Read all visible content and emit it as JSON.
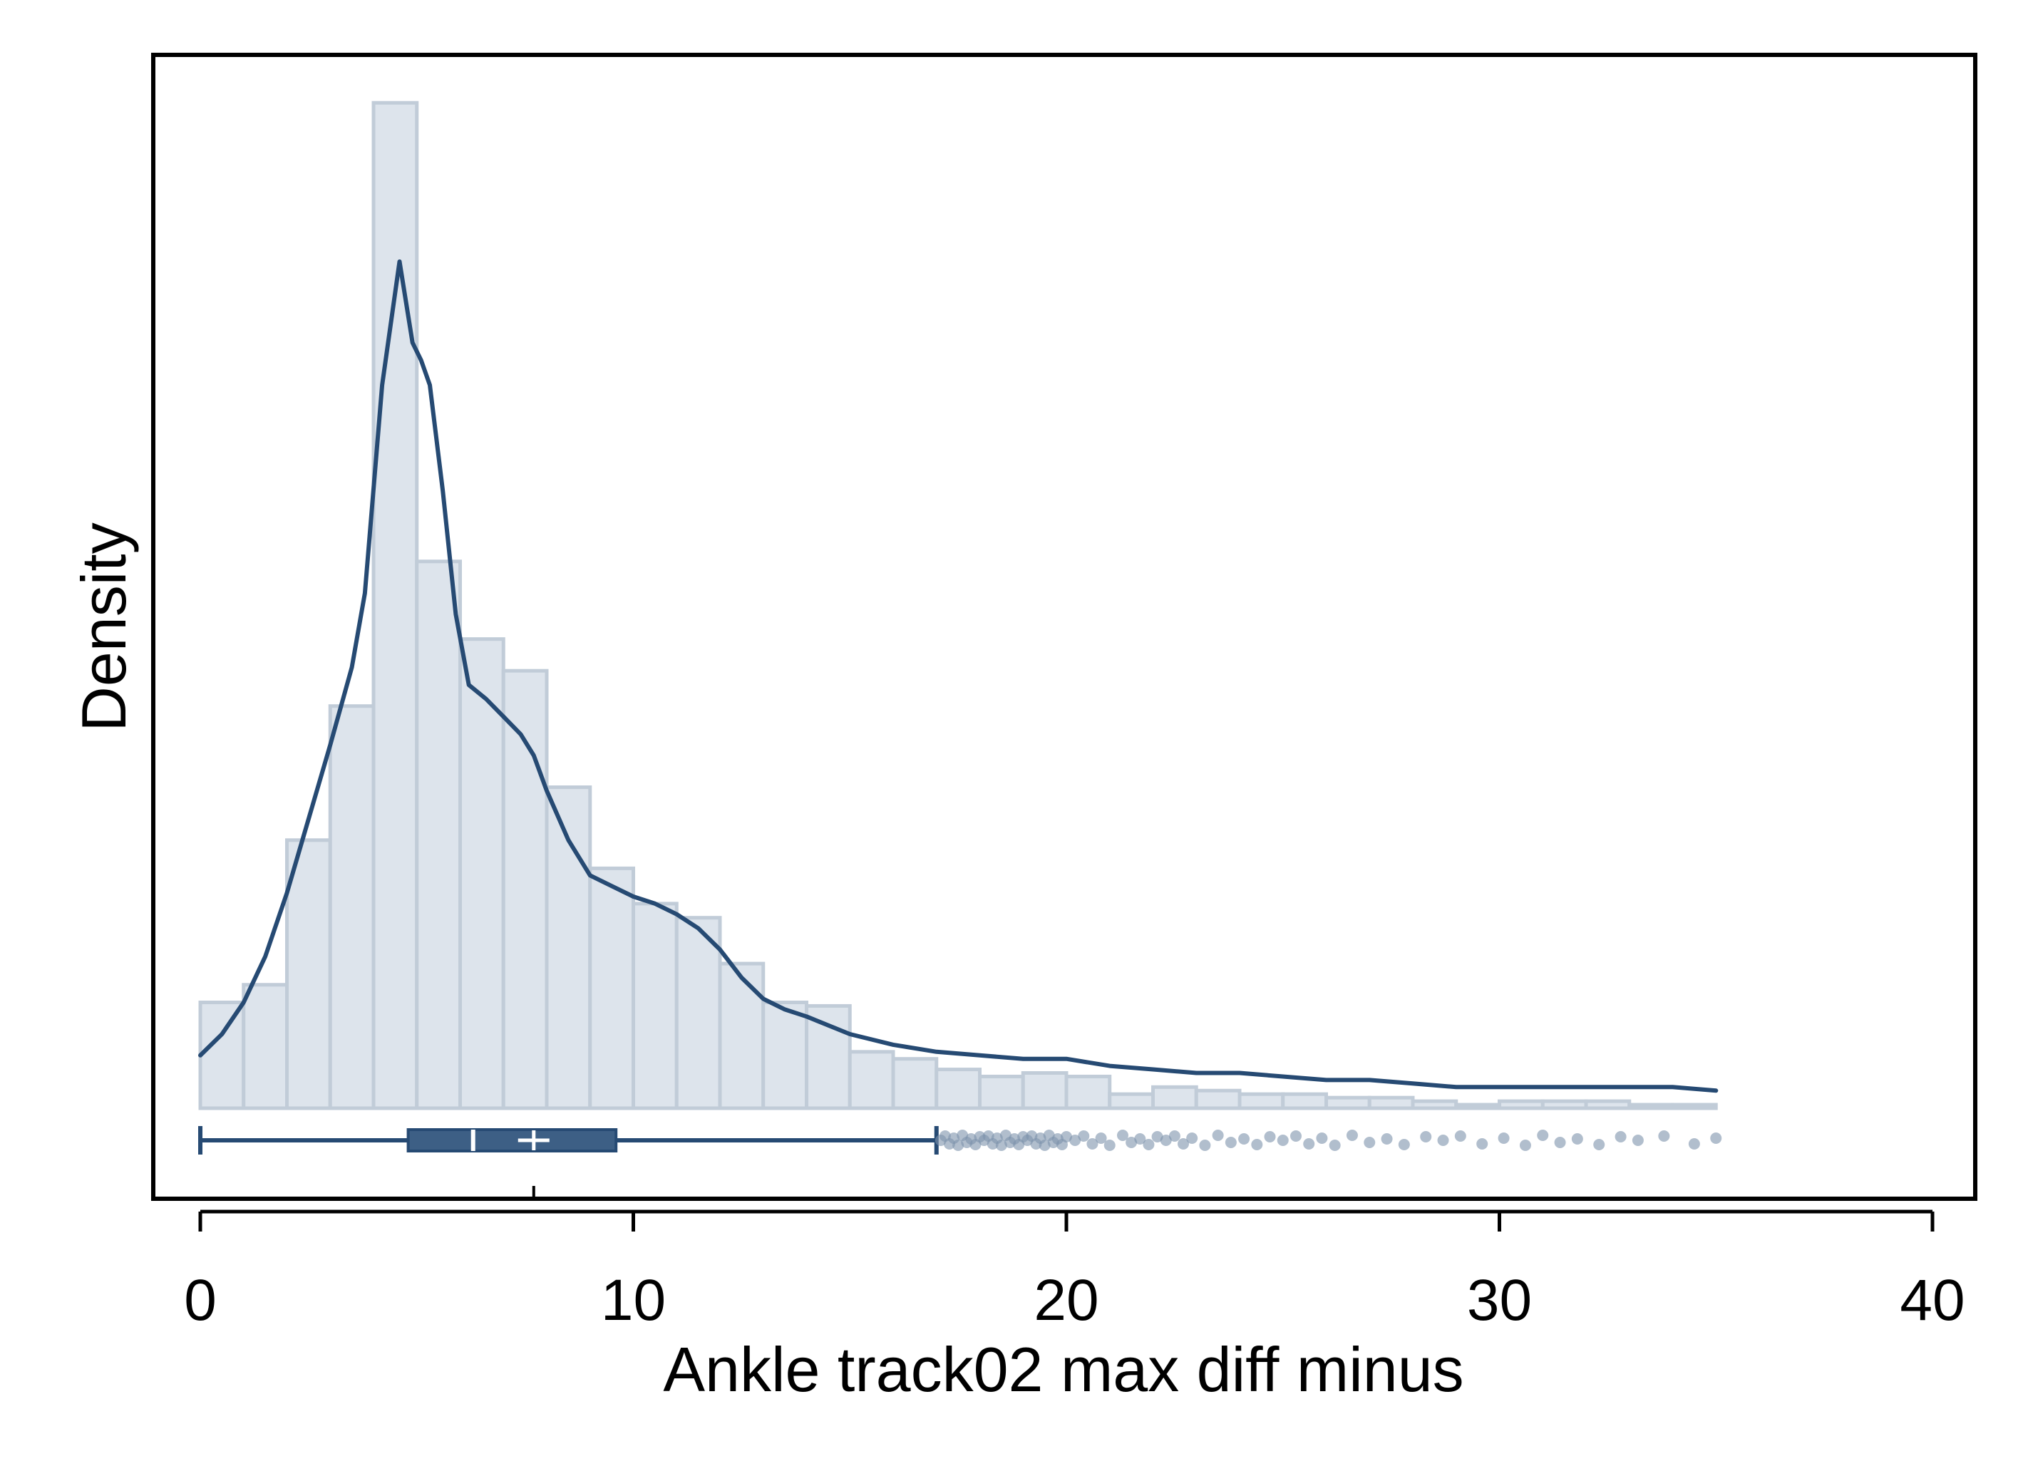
{
  "chart_data": {
    "type": "histogram",
    "xlabel": "Ankle track02 max diff minus",
    "ylabel": "Density",
    "xlim": [
      -1.1,
      41.2
    ],
    "x_ticks": [
      0,
      10,
      20,
      30,
      40
    ],
    "x_tick_labels": [
      "0",
      "10",
      "20",
      "30",
      "40"
    ],
    "histogram": {
      "bins": [
        {
          "x0": 0.0,
          "x1": 1.0,
          "density": 0.03
        },
        {
          "x0": 1.0,
          "x1": 2.0,
          "density": 0.035
        },
        {
          "x0": 2.0,
          "x1": 3.0,
          "density": 0.076
        },
        {
          "x0": 3.0,
          "x1": 4.0,
          "density": 0.114
        },
        {
          "x0": 4.0,
          "x1": 5.0,
          "density": 0.285
        },
        {
          "x0": 5.0,
          "x1": 6.0,
          "density": 0.155
        },
        {
          "x0": 6.0,
          "x1": 7.0,
          "density": 0.133
        },
        {
          "x0": 7.0,
          "x1": 8.0,
          "density": 0.124
        },
        {
          "x0": 8.0,
          "x1": 9.0,
          "density": 0.091
        },
        {
          "x0": 9.0,
          "x1": 10.0,
          "density": 0.068
        },
        {
          "x0": 10.0,
          "x1": 11.0,
          "density": 0.058
        },
        {
          "x0": 11.0,
          "x1": 12.0,
          "density": 0.054
        },
        {
          "x0": 12.0,
          "x1": 13.0,
          "density": 0.041
        },
        {
          "x0": 13.0,
          "x1": 14.0,
          "density": 0.03
        },
        {
          "x0": 14.0,
          "x1": 15.0,
          "density": 0.029
        },
        {
          "x0": 15.0,
          "x1": 16.0,
          "density": 0.016
        },
        {
          "x0": 16.0,
          "x1": 17.0,
          "density": 0.014
        },
        {
          "x0": 17.0,
          "x1": 18.0,
          "density": 0.011
        },
        {
          "x0": 18.0,
          "x1": 19.0,
          "density": 0.009
        },
        {
          "x0": 19.0,
          "x1": 20.0,
          "density": 0.01
        },
        {
          "x0": 20.0,
          "x1": 21.0,
          "density": 0.009
        },
        {
          "x0": 21.0,
          "x1": 22.0,
          "density": 0.004
        },
        {
          "x0": 22.0,
          "x1": 23.0,
          "density": 0.006
        },
        {
          "x0": 23.0,
          "x1": 24.0,
          "density": 0.005
        },
        {
          "x0": 24.0,
          "x1": 25.0,
          "density": 0.004
        },
        {
          "x0": 25.0,
          "x1": 26.0,
          "density": 0.004
        },
        {
          "x0": 26.0,
          "x1": 27.0,
          "density": 0.003
        },
        {
          "x0": 27.0,
          "x1": 28.0,
          "density": 0.003
        },
        {
          "x0": 28.0,
          "x1": 29.0,
          "density": 0.002
        },
        {
          "x0": 29.0,
          "x1": 30.0,
          "density": 0.001
        },
        {
          "x0": 30.0,
          "x1": 31.0,
          "density": 0.002
        },
        {
          "x0": 31.0,
          "x1": 32.0,
          "density": 0.002
        },
        {
          "x0": 32.0,
          "x1": 33.0,
          "density": 0.002
        },
        {
          "x0": 33.0,
          "x1": 34.0,
          "density": 0.001
        },
        {
          "x0": 34.0,
          "x1": 35.0,
          "density": 0.001
        }
      ]
    },
    "kde": {
      "x": [
        0.0,
        0.5,
        1.0,
        1.5,
        2.0,
        2.5,
        3.0,
        3.5,
        3.8,
        4.2,
        4.6,
        4.9,
        5.1,
        5.3,
        5.6,
        5.9,
        6.2,
        6.6,
        7.0,
        7.4,
        7.7,
        8.0,
        8.5,
        9.0,
        9.5,
        10.0,
        10.5,
        11.0,
        11.5,
        12.0,
        12.5,
        13.0,
        13.5,
        14.0,
        15.0,
        16.0,
        17.0,
        18.0,
        19.0,
        20.0,
        21.0,
        22.0,
        23.0,
        24.0,
        25.0,
        26.0,
        27.0,
        28.0,
        29.0,
        30.0,
        31.0,
        32.0,
        33.0,
        34.0,
        35.0
      ],
      "density": [
        0.015,
        0.021,
        0.03,
        0.043,
        0.061,
        0.082,
        0.103,
        0.125,
        0.146,
        0.205,
        0.24,
        0.217,
        0.212,
        0.205,
        0.175,
        0.14,
        0.12,
        0.116,
        0.111,
        0.106,
        0.1,
        0.09,
        0.076,
        0.066,
        0.063,
        0.06,
        0.058,
        0.055,
        0.051,
        0.045,
        0.037,
        0.031,
        0.028,
        0.026,
        0.021,
        0.018,
        0.016,
        0.015,
        0.014,
        0.014,
        0.012,
        0.011,
        0.01,
        0.01,
        0.009,
        0.008,
        0.008,
        0.007,
        0.006,
        0.006,
        0.006,
        0.006,
        0.006,
        0.006,
        0.005
      ],
      "color": "#264a73"
    },
    "boxplot": {
      "min": 0.0,
      "q1": 4.8,
      "median": 6.3,
      "mean": 7.7,
      "q3": 9.6,
      "whisker_high": 17.0,
      "outliers": [
        17.1,
        17.2,
        17.3,
        17.4,
        17.5,
        17.6,
        17.7,
        17.8,
        17.9,
        18.0,
        18.1,
        18.2,
        18.3,
        18.4,
        18.5,
        18.6,
        18.7,
        18.8,
        18.9,
        19.0,
        19.1,
        19.2,
        19.3,
        19.4,
        19.5,
        19.6,
        19.7,
        19.8,
        19.9,
        20.0,
        20.2,
        20.4,
        20.6,
        20.8,
        21.0,
        21.3,
        21.5,
        21.7,
        21.9,
        22.1,
        22.3,
        22.5,
        22.7,
        22.9,
        23.2,
        23.5,
        23.8,
        24.1,
        24.4,
        24.7,
        25.0,
        25.3,
        25.6,
        25.9,
        26.2,
        26.6,
        27.0,
        27.4,
        27.8,
        28.3,
        28.7,
        29.1,
        29.6,
        30.1,
        30.6,
        31.0,
        31.4,
        31.8,
        32.3,
        32.8,
        33.2,
        33.8,
        34.5,
        35.0
      ],
      "fill_color": "#3d5f85",
      "line_color": "#264a73",
      "outlier_color": "#7d93ab"
    },
    "bar_fill_color": "#dde4ec",
    "bar_edge_color": "#c1ccd8",
    "grid": false,
    "legend": "none"
  }
}
